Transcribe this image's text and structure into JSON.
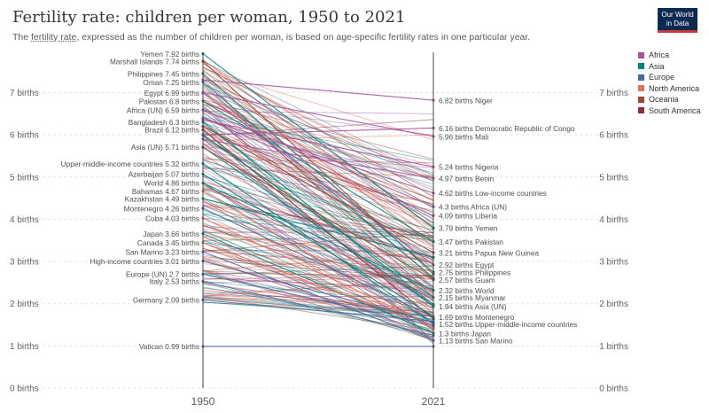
{
  "title": "Fertility rate: children per woman, 1950 to 2021",
  "subtitle_prefix": "The ",
  "subtitle_link": "fertility rate",
  "subtitle_suffix": ", expressed as the number of children per woman, is based on age-specific fertility rates in one particular year.",
  "logo": {
    "line1": "Our World",
    "line2": "in Data"
  },
  "legend": [
    {
      "name": "Africa",
      "color": "#a2559c"
    },
    {
      "name": "Asia",
      "color": "#00847e"
    },
    {
      "name": "Europe",
      "color": "#4c6a9c"
    },
    {
      "name": "North America",
      "color": "#e56e5a"
    },
    {
      "name": "Oceania",
      "color": "#a1452e"
    },
    {
      "name": "South America",
      "color": "#883039"
    }
  ],
  "chart_data": {
    "type": "line",
    "x": [
      "1950",
      "2021"
    ],
    "ylim": [
      0,
      8
    ],
    "y_ticks": [
      "0 births",
      "1 births",
      "2 births",
      "3 births",
      "4 births",
      "5 births",
      "6 births",
      "7 births"
    ],
    "unit": "births",
    "labels_1950": [
      {
        "name": "Yemen",
        "value": 7.92
      },
      {
        "name": "Marshall Islands",
        "value": 7.74
      },
      {
        "name": "Philippines",
        "value": 7.45
      },
      {
        "name": "Oman",
        "value": 7.25
      },
      {
        "name": "Egypt",
        "value": 6.99
      },
      {
        "name": "Pakistan",
        "value": 6.8
      },
      {
        "name": "Africa (UN)",
        "value": 6.59
      },
      {
        "name": "Bangladesh",
        "value": 6.3
      },
      {
        "name": "Brazil",
        "value": 6.12
      },
      {
        "name": "Asia (UN)",
        "value": 5.71
      },
      {
        "name": "Upper-middle-income countries",
        "value": 5.32
      },
      {
        "name": "Azerbaijan",
        "value": 5.07
      },
      {
        "name": "World",
        "value": 4.86
      },
      {
        "name": "Bahamas",
        "value": 4.67
      },
      {
        "name": "Kazakhstan",
        "value": 4.49
      },
      {
        "name": "Montenegro",
        "value": 4.26
      },
      {
        "name": "Cuba",
        "value": 4.03
      },
      {
        "name": "Japan",
        "value": 3.66
      },
      {
        "name": "Canada",
        "value": 3.45
      },
      {
        "name": "San Marino",
        "value": 3.23
      },
      {
        "name": "High-income countries",
        "value": 3.01
      },
      {
        "name": "Europe (UN)",
        "value": 2.7
      },
      {
        "name": "Italy",
        "value": 2.53
      },
      {
        "name": "Germany",
        "value": 2.09
      },
      {
        "name": "Vatican",
        "value": 0.99
      }
    ],
    "labels_2021": [
      {
        "name": "Niger",
        "value": 6.82
      },
      {
        "name": "Democratic Republic of Congo",
        "value": 6.16
      },
      {
        "name": "Mali",
        "value": 5.96
      },
      {
        "name": "Nigeria",
        "value": 5.24
      },
      {
        "name": "Benin",
        "value": 4.97
      },
      {
        "name": "Low-income countries",
        "value": 4.62
      },
      {
        "name": "Africa (UN)",
        "value": 4.3
      },
      {
        "name": "Liberia",
        "value": 4.09
      },
      {
        "name": "Yemen",
        "value": 3.79
      },
      {
        "name": "Pakistan",
        "value": 3.47
      },
      {
        "name": "Papua New Guinea",
        "value": 3.21
      },
      {
        "name": "Egypt",
        "value": 2.92
      },
      {
        "name": "Philippines",
        "value": 2.75
      },
      {
        "name": "Guam",
        "value": 2.57
      },
      {
        "name": "World",
        "value": 2.32
      },
      {
        "name": "Myanmar",
        "value": 2.15
      },
      {
        "name": "Asia (UN)",
        "value": 1.94
      },
      {
        "name": "Montenegro",
        "value": 1.69
      },
      {
        "name": "Upper-middle-income countries",
        "value": 1.52
      },
      {
        "name": "Japan",
        "value": 1.3
      },
      {
        "name": "San Marino",
        "value": 1.13
      }
    ],
    "series": [
      {
        "name": "Yemen",
        "region": "Asia",
        "values": [
          7.92,
          3.79
        ]
      },
      {
        "name": "Marshall Islands",
        "region": "Oceania",
        "values": [
          7.74,
          2.7
        ]
      },
      {
        "name": "Philippines",
        "region": "Asia",
        "values": [
          7.45,
          2.75
        ]
      },
      {
        "name": "Oman",
        "region": "Asia",
        "values": [
          7.25,
          2.6
        ]
      },
      {
        "name": "Egypt",
        "region": "Africa",
        "values": [
          6.99,
          2.92
        ]
      },
      {
        "name": "Pakistan",
        "region": "Asia",
        "values": [
          6.8,
          3.47
        ]
      },
      {
        "name": "Africa (UN)",
        "region": "Africa",
        "values": [
          6.59,
          4.3
        ]
      },
      {
        "name": "Bangladesh",
        "region": "Asia",
        "values": [
          6.3,
          1.98
        ]
      },
      {
        "name": "Brazil",
        "region": "South America",
        "values": [
          6.12,
          1.64
        ]
      },
      {
        "name": "Asia (UN)",
        "region": "Asia",
        "values": [
          5.71,
          1.94
        ]
      },
      {
        "name": "Upper-middle-income countries",
        "region": "Asia",
        "values": [
          5.32,
          1.52
        ]
      },
      {
        "name": "Azerbaijan",
        "region": "Asia",
        "values": [
          5.07,
          1.7
        ]
      },
      {
        "name": "World",
        "region": "Asia",
        "values": [
          4.86,
          2.32
        ]
      },
      {
        "name": "Bahamas",
        "region": "North America",
        "values": [
          4.67,
          1.4
        ]
      },
      {
        "name": "Kazakhstan",
        "region": "Asia",
        "values": [
          4.49,
          3.1
        ]
      },
      {
        "name": "Montenegro",
        "region": "Europe",
        "values": [
          4.26,
          1.69
        ]
      },
      {
        "name": "Cuba",
        "region": "North America",
        "values": [
          4.03,
          1.46
        ]
      },
      {
        "name": "Japan",
        "region": "Asia",
        "values": [
          3.66,
          1.3
        ]
      },
      {
        "name": "Canada",
        "region": "North America",
        "values": [
          3.45,
          1.43
        ]
      },
      {
        "name": "San Marino",
        "region": "Europe",
        "values": [
          3.23,
          1.13
        ]
      },
      {
        "name": "High-income countries",
        "region": "Europe",
        "values": [
          3.01,
          1.56
        ]
      },
      {
        "name": "Europe (UN)",
        "region": "Europe",
        "values": [
          2.7,
          1.48
        ]
      },
      {
        "name": "Italy",
        "region": "Europe",
        "values": [
          2.53,
          1.25
        ]
      },
      {
        "name": "Germany",
        "region": "Europe",
        "values": [
          2.09,
          1.58
        ]
      },
      {
        "name": "Vatican",
        "region": "Europe",
        "values": [
          0.99,
          0.99
        ]
      },
      {
        "name": "Niger",
        "region": "Africa",
        "values": [
          7.3,
          6.82
        ]
      },
      {
        "name": "Democratic Republic of Congo",
        "region": "Africa",
        "values": [
          6.0,
          6.16
        ]
      },
      {
        "name": "Mali",
        "region": "Africa",
        "values": [
          7.0,
          5.96
        ]
      },
      {
        "name": "Nigeria",
        "region": "Africa",
        "values": [
          6.35,
          5.24
        ]
      },
      {
        "name": "Benin",
        "region": "Africa",
        "values": [
          5.9,
          4.97
        ]
      },
      {
        "name": "Low-income countries",
        "region": "Africa",
        "values": [
          6.4,
          4.62
        ]
      },
      {
        "name": "Liberia",
        "region": "Africa",
        "values": [
          6.4,
          4.09
        ]
      },
      {
        "name": "Papua New Guinea",
        "region": "Oceania",
        "values": [
          6.2,
          3.21
        ]
      },
      {
        "name": "Guam",
        "region": "Oceania",
        "values": [
          5.7,
          2.57
        ]
      },
      {
        "name": "Myanmar",
        "region": "Asia",
        "values": [
          6.0,
          2.15
        ]
      }
    ]
  }
}
